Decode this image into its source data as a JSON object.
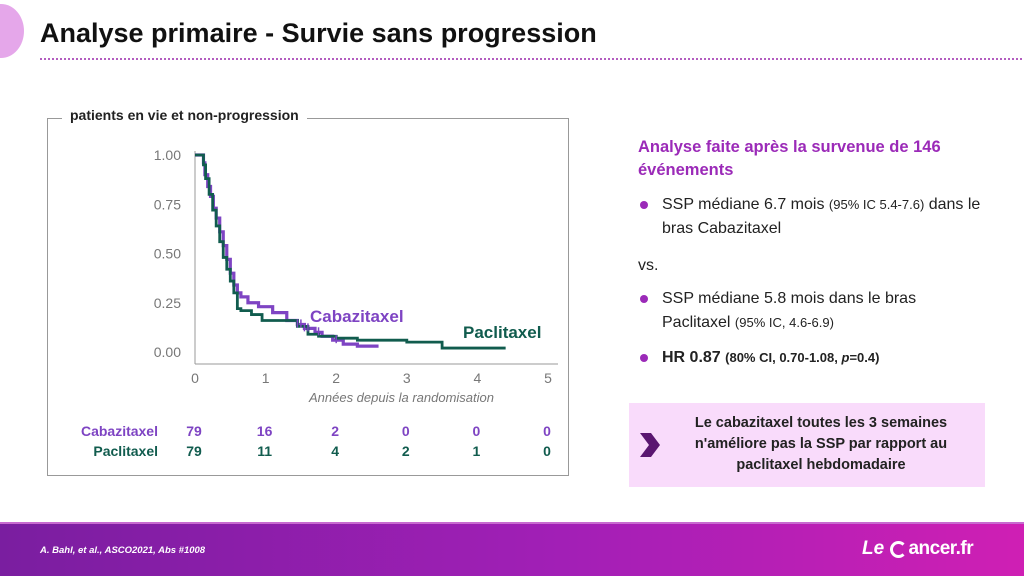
{
  "slide": {
    "title": "Analyse primaire - Survie sans progression"
  },
  "colors": {
    "cabazitaxel": "#7e44c3",
    "paclitaxel": "#115c4e",
    "accent": "#9b2ab8"
  },
  "chart_data": {
    "type": "line",
    "title": "patients en vie et non-progression",
    "xlabel": "Années depuis la randomisation",
    "ylabel": "",
    "xlim": [
      0,
      5
    ],
    "ylim": [
      0,
      1
    ],
    "x_ticks": [
      "0",
      "1",
      "2",
      "3",
      "4",
      "5"
    ],
    "y_ticks": [
      "0.00",
      "0.25",
      "0.50",
      "0.75",
      "1.00"
    ],
    "series": [
      {
        "name": "Cabazitaxel",
        "step": true,
        "x": [
          0,
          0.12,
          0.14,
          0.18,
          0.22,
          0.26,
          0.3,
          0.35,
          0.4,
          0.45,
          0.5,
          0.55,
          0.6,
          0.65,
          0.75,
          0.9,
          1.1,
          1.3,
          1.45,
          1.55,
          1.7,
          1.8,
          1.95,
          2.1,
          2.3,
          2.6
        ],
        "y": [
          1,
          0.96,
          0.9,
          0.84,
          0.79,
          0.73,
          0.68,
          0.61,
          0.54,
          0.47,
          0.4,
          0.34,
          0.3,
          0.28,
          0.25,
          0.23,
          0.2,
          0.16,
          0.14,
          0.12,
          0.1,
          0.08,
          0.06,
          0.04,
          0.03,
          0.03
        ]
      },
      {
        "name": "Paclitaxel",
        "step": true,
        "x": [
          0,
          0.12,
          0.15,
          0.2,
          0.25,
          0.3,
          0.35,
          0.4,
          0.45,
          0.5,
          0.55,
          0.6,
          0.65,
          0.8,
          0.95,
          1.45,
          1.6,
          1.75,
          2.0,
          2.3,
          2.6,
          3.0,
          3.5,
          4.0,
          4.4
        ],
        "y": [
          1,
          0.95,
          0.88,
          0.8,
          0.72,
          0.64,
          0.56,
          0.48,
          0.42,
          0.36,
          0.3,
          0.22,
          0.21,
          0.19,
          0.16,
          0.13,
          0.09,
          0.08,
          0.07,
          0.06,
          0.06,
          0.05,
          0.02,
          0.02,
          0.02
        ]
      }
    ],
    "series_labels": [
      "Cabazitaxel",
      "Paclitaxel"
    ],
    "grid": false,
    "risk_table": [
      {
        "arm": "Cabazitaxel",
        "values": [
          "79",
          "16",
          "2",
          "0",
          "0",
          "0"
        ]
      },
      {
        "arm": "Paclitaxel",
        "values": [
          "79",
          "11",
          "4",
          "2",
          "1",
          "0"
        ]
      }
    ]
  },
  "summary": {
    "heading": "Analyse faite après la survenue de 146 événements",
    "b1_main": "SSP médiane 6.7 mois ",
    "b1_small": "(95% IC 5.4-7.6)",
    "b1_tail": " dans le bras Cabazitaxel",
    "vs": "vs.",
    "b2_main": "SSP médiane 5.8 mois dans le bras Paclitaxel ",
    "b2_small": "(95% IC, 4.6-6.9)",
    "b3_main": "HR 0.87 ",
    "b3_small1": "(80% CI, 0.70-1.08, ",
    "b3_small_p": "p",
    "b3_small2": "=0.4)"
  },
  "conclusion": {
    "text": "Le cabazitaxel toutes les 3 semaines n'améliore pas la SSP par rapport au paclitaxel hebdomadaire"
  },
  "footer": {
    "citation": "A. Bahl, et al., ASCO2021, Abs #1008",
    "logo_le": "Le",
    "logo_rest": "ancer.fr"
  }
}
